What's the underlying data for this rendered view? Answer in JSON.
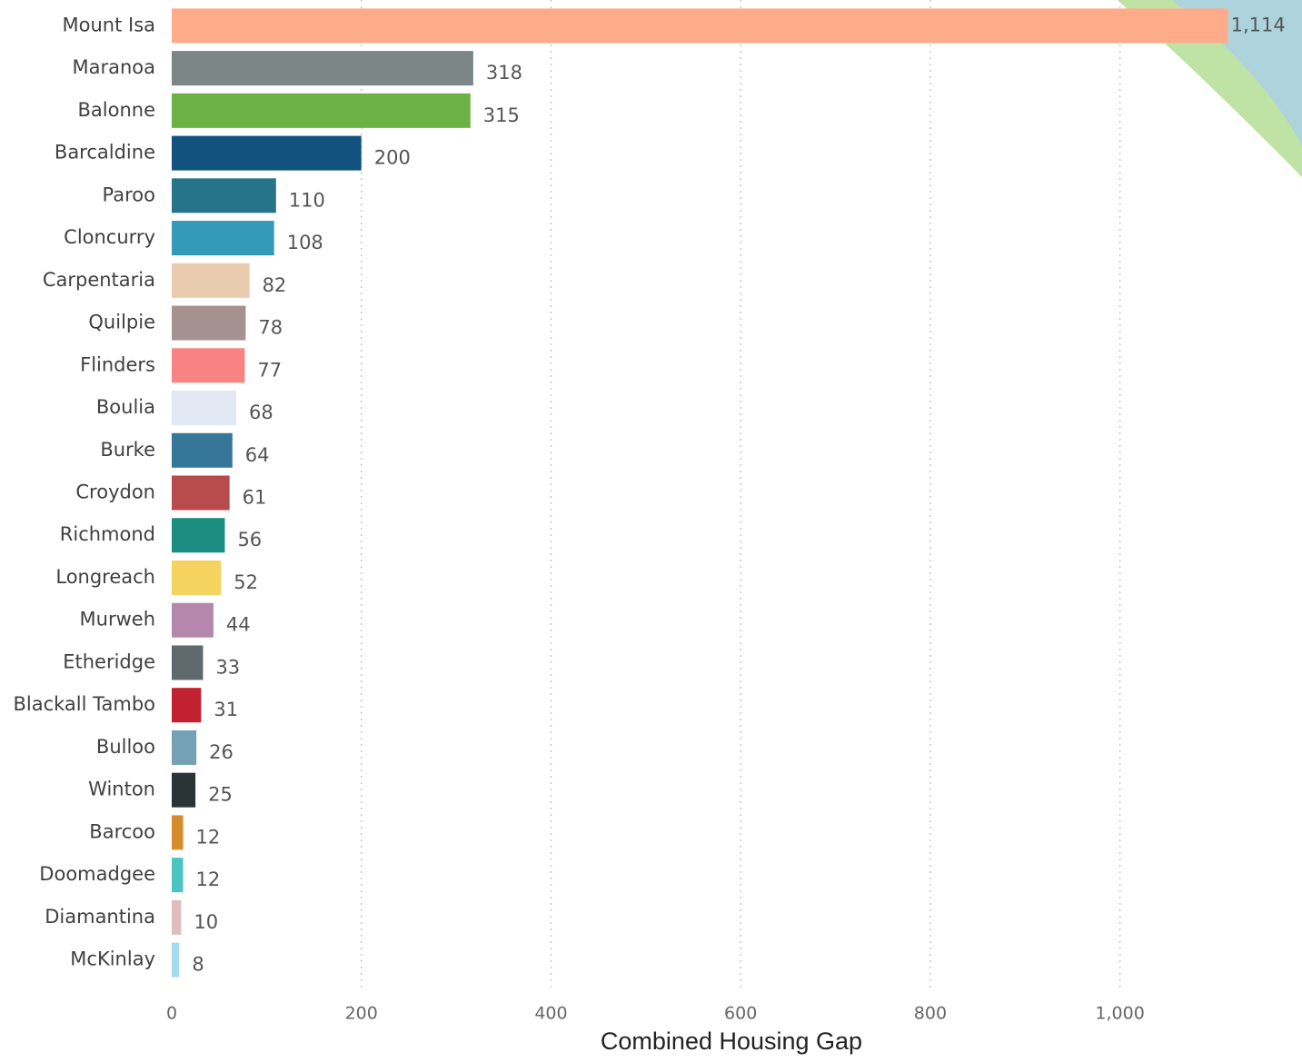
{
  "chart_data": {
    "type": "bar",
    "orientation": "horizontal",
    "x_label": "Combined Housing Gap",
    "categories": [
      "Mount Isa",
      "Maranoa",
      "Balonne",
      "Barcaldine",
      "Paroo",
      "Cloncurry",
      "Carpentaria",
      "Quilpie",
      "Flinders",
      "Boulia",
      "Burke",
      "Croydon",
      "Richmond",
      "Longreach",
      "Murweh",
      "Etheridge",
      "Blackall Tambo",
      "Bulloo",
      "Winton",
      "Barcoo",
      "Doomadgee",
      "Diamantina",
      "McKinlay"
    ],
    "values": [
      1114,
      318,
      315,
      200,
      110,
      108,
      82,
      78,
      77,
      68,
      64,
      61,
      56,
      52,
      44,
      33,
      31,
      26,
      25,
      12,
      12,
      10,
      8
    ],
    "value_labels": [
      "1,114",
      "318",
      "315",
      "200",
      "110",
      "108",
      "82",
      "78",
      "77",
      "68",
      "64",
      "61",
      "56",
      "52",
      "44",
      "33",
      "31",
      "26",
      "25",
      "12",
      "12",
      "10",
      "8"
    ],
    "colors": [
      "#fdab89",
      "#7c8785",
      "#6bb143",
      "#12527e",
      "#27748a",
      "#3599ba",
      "#e9cbae",
      "#a59190",
      "#f98383",
      "#e1e8f3",
      "#357699",
      "#b84b4b",
      "#1a8c80",
      "#f4d35e",
      "#b388ac",
      "#5f686d",
      "#c2212f",
      "#74a2b4",
      "#2a3336",
      "#d88b2c",
      "#4ac4c0",
      "#ddbdbd",
      "#a6ddee"
    ],
    "xlim": [
      0,
      1192
    ],
    "xticks": [
      0,
      200,
      400,
      600,
      800,
      {
        "value": 1000,
        "label": "1,000"
      }
    ],
    "grid": true
  }
}
